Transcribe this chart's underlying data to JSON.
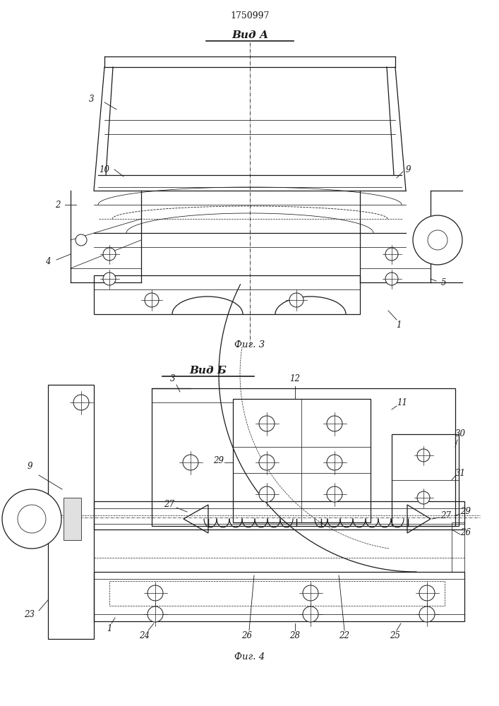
{
  "patent_number": "1750997",
  "fig3_label": "Вид А",
  "fig4_label": "Вид Б",
  "fig3_caption": "Фиг. 3",
  "fig4_caption": "Фиг. 4",
  "line_color": "#1a1a1a"
}
